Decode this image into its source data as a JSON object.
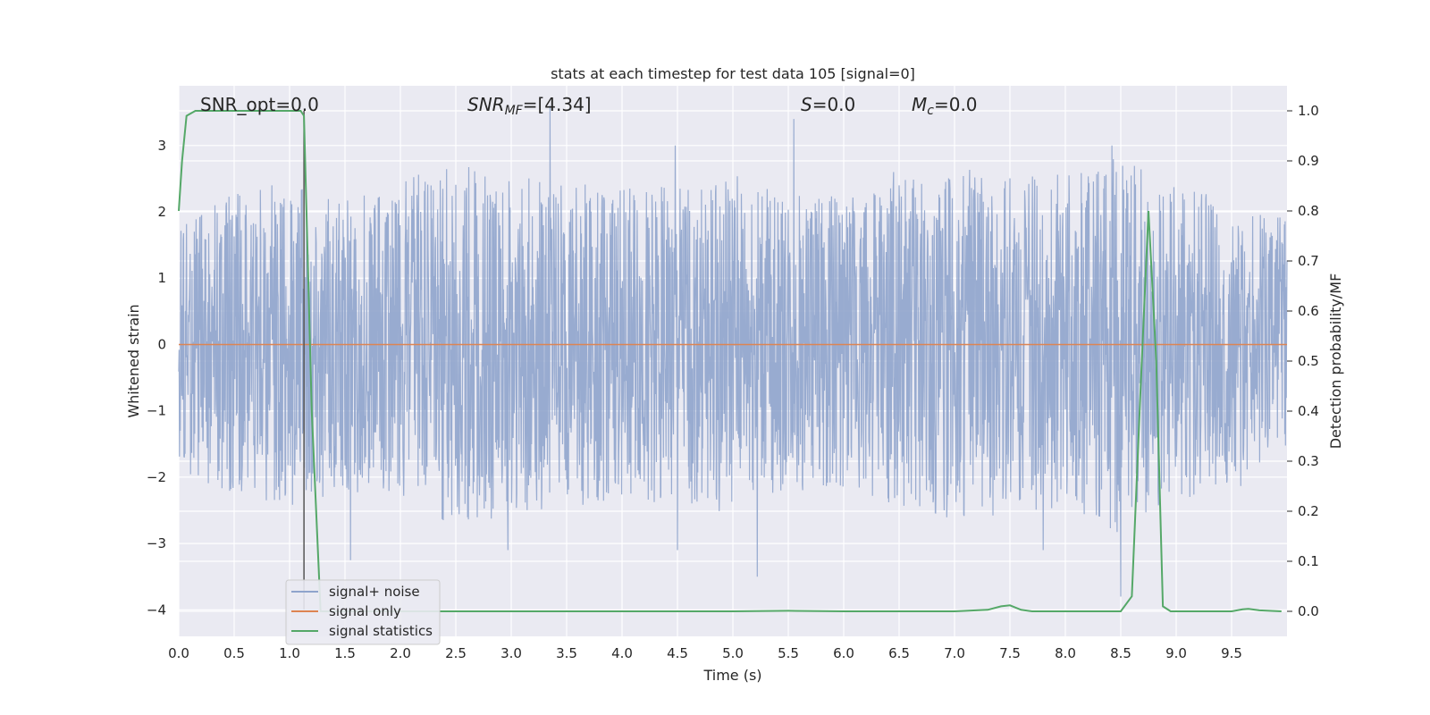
{
  "chart_data": {
    "type": "line",
    "title": "stats at each timestep for test data 105 [signal=0]",
    "xlabel": "Time (s)",
    "ylabel": "Whitened strain",
    "y2label": "Detection probability/MF",
    "xlim": [
      0.0,
      10.0
    ],
    "ylim": [
      -4.4,
      3.9
    ],
    "y2lim": [
      -0.05,
      1.05
    ],
    "x_ticks": [
      0.0,
      0.5,
      1.0,
      1.5,
      2.0,
      2.5,
      3.0,
      3.5,
      4.0,
      4.5,
      5.0,
      5.5,
      6.0,
      6.5,
      7.0,
      7.5,
      8.0,
      8.5,
      9.0,
      9.5
    ],
    "x_tick_labels": [
      "0.0",
      "0.5",
      "1.0",
      "1.5",
      "2.0",
      "2.5",
      "3.0",
      "3.5",
      "4.0",
      "4.5",
      "5.0",
      "5.5",
      "6.0",
      "6.5",
      "7.0",
      "7.5",
      "8.0",
      "8.5",
      "9.0",
      "9.5"
    ],
    "y_ticks": [
      3,
      2,
      1,
      0,
      -1,
      -2,
      -3,
      -4
    ],
    "y_tick_labels": [
      "3",
      "2",
      "1",
      "0",
      "−1",
      "−2",
      "−3",
      "−4"
    ],
    "y2_ticks": [
      1.0,
      0.9,
      0.8,
      0.7,
      0.6,
      0.5,
      0.4,
      0.3,
      0.2,
      0.1,
      0.0
    ],
    "y2_tick_labels": [
      "1.0",
      "0.9",
      "0.8",
      "0.7",
      "0.6",
      "0.5",
      "0.4",
      "0.3",
      "0.2",
      "0.1",
      "0.0"
    ],
    "grid": true,
    "legend_position": "lower-left",
    "annotations": {
      "snr_opt": "SNR_opt=0.0",
      "snr_mf_main": "SNR",
      "snr_mf_sub": "MF",
      "snr_mf_value": "=[4.34]",
      "s_main": "S",
      "s_value": "=0.0",
      "mc_main": "M",
      "mc_sub": "c",
      "mc_value": "=0.0"
    },
    "vertical_marker_x": 1.13,
    "series": [
      {
        "name": "signal+ noise",
        "color": "#8fa4cc",
        "axis": "left",
        "description_of_values": "noise",
        "envelope_upper": [
          [
            0.0,
            2.1
          ],
          [
            0.5,
            2.4
          ],
          [
            1.0,
            2.6
          ],
          [
            1.5,
            2.3
          ],
          [
            2.0,
            2.6
          ],
          [
            2.5,
            2.9
          ],
          [
            3.0,
            2.7
          ],
          [
            3.5,
            2.6
          ],
          [
            4.0,
            2.5
          ],
          [
            4.5,
            2.5
          ],
          [
            5.0,
            2.7
          ],
          [
            5.5,
            2.4
          ],
          [
            6.0,
            2.4
          ],
          [
            6.5,
            2.6
          ],
          [
            7.0,
            2.8
          ],
          [
            7.5,
            2.7
          ],
          [
            8.0,
            2.7
          ],
          [
            8.5,
            3.0
          ],
          [
            9.0,
            2.5
          ],
          [
            9.5,
            2.3
          ],
          [
            10.0,
            2.0
          ]
        ],
        "peaks": [
          [
            3.35,
            3.6
          ],
          [
            4.48,
            3.0
          ],
          [
            5.55,
            3.4
          ],
          [
            6.45,
            2.6
          ],
          [
            8.42,
            3.0
          ]
        ],
        "troughs": [
          [
            1.55,
            -3.25
          ],
          [
            2.97,
            -3.1
          ],
          [
            4.5,
            -3.1
          ],
          [
            5.22,
            -3.5
          ],
          [
            8.5,
            -3.8
          ],
          [
            7.8,
            -3.1
          ]
        ]
      },
      {
        "name": "signal only",
        "color": "#dd8452",
        "axis": "left",
        "x": [
          0.0,
          10.0
        ],
        "y": [
          0.0,
          0.0
        ]
      },
      {
        "name": "signal statistics",
        "color": "#55a868",
        "axis": "right",
        "x": [
          0.0,
          0.03,
          0.07,
          0.15,
          0.3,
          0.6,
          0.9,
          1.05,
          1.1,
          1.13,
          1.2,
          1.28,
          1.35,
          1.5,
          2.0,
          3.0,
          4.0,
          5.0,
          5.5,
          6.0,
          7.0,
          7.3,
          7.42,
          7.5,
          7.6,
          7.7,
          8.0,
          8.5,
          8.6,
          8.68,
          8.75,
          8.82,
          8.88,
          8.95,
          9.0,
          9.5,
          9.6,
          9.65,
          9.75,
          9.95
        ],
        "y": [
          0.8,
          0.9,
          0.99,
          1.0,
          1.0,
          1.0,
          1.0,
          1.0,
          1.0,
          0.99,
          0.4,
          0.0,
          0.0,
          0.0,
          0.0,
          0.0,
          0.0,
          0.0,
          0.001,
          0.0,
          0.0,
          0.003,
          0.01,
          0.012,
          0.003,
          0.0,
          0.0,
          0.0,
          0.03,
          0.45,
          0.8,
          0.5,
          0.01,
          0.0,
          0.0,
          0.0,
          0.004,
          0.005,
          0.002,
          0.0
        ]
      }
    ]
  }
}
